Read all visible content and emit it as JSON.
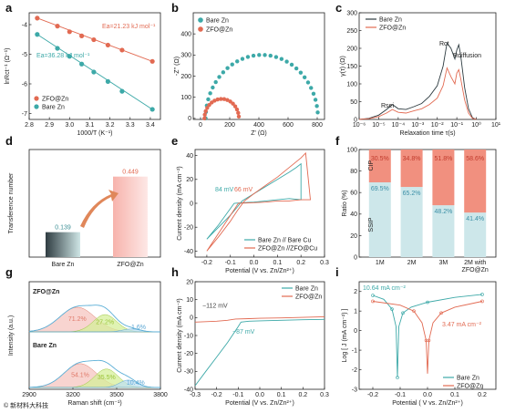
{
  "colors": {
    "zn": "#3da9a8",
    "zfo": "#e26a52",
    "dark": "#2d3b40",
    "zfo_light": "#f6b8b0",
    "red": "#d9534f"
  },
  "chart_data": [
    {
      "id": "a",
      "type": "scatter",
      "panel_label": "a",
      "xlabel": "1000/T (K⁻¹)",
      "ylabel": "lnRct⁻¹ (Ω⁻¹)",
      "xlim": [
        2.8,
        3.45
      ],
      "ylim": [
        -7.2,
        -3.6
      ],
      "xticks": [
        "2.8",
        "2.9",
        "3.0",
        "3.1",
        "3.2",
        "3.3",
        "3.4"
      ],
      "yticks": [
        "-4",
        "-5",
        "-6",
        "-7"
      ],
      "series": [
        {
          "name": "ZFO@Zn",
          "x": [
            2.84,
            2.94,
            3.0,
            3.06,
            3.12,
            3.19,
            3.26,
            3.41
          ],
          "y": [
            -3.78,
            -4.05,
            -4.24,
            -4.38,
            -4.51,
            -4.69,
            -4.86,
            -5.24
          ]
        },
        {
          "name": "Bare Zn",
          "x": [
            2.84,
            2.94,
            3.0,
            3.06,
            3.12,
            3.19,
            3.26,
            3.41
          ],
          "y": [
            -4.33,
            -4.8,
            -5.07,
            -5.33,
            -5.6,
            -5.92,
            -6.25,
            -6.86
          ]
        }
      ],
      "annotations": [
        "Ea=21.23 kJ mol⁻¹",
        "Ea=36.28 kJ mol⁻¹"
      ],
      "legend": "bottom-left"
    },
    {
      "id": "b",
      "type": "scatter",
      "panel_label": "b",
      "xlabel": "Z' (Ω)",
      "ylabel": "-Z'' (Ω)",
      "xlim": [
        -50,
        850
      ],
      "ylim": [
        -5,
        500
      ],
      "xticks": [
        "0",
        "200",
        "400",
        "600",
        "800"
      ],
      "yticks": [
        "0",
        "100",
        "200",
        "300",
        "400"
      ],
      "series": [
        {
          "name": "Bare Zn",
          "center": 420,
          "radius": 385
        },
        {
          "name": "ZFO@Zn",
          "center": 145,
          "radius": 118
        }
      ],
      "legend": "top-left"
    },
    {
      "id": "c",
      "type": "line",
      "panel_label": "c",
      "xlabel": "Relaxation time τ(s)",
      "ylabel": "γ(τ) (Ω)",
      "xlim_log": [
        -6,
        1
      ],
      "ylim": [
        0,
        300
      ],
      "xticks": [
        "10⁻⁶",
        "10⁻⁵",
        "10⁻⁴",
        "10⁻³",
        "10⁻²",
        "10⁻¹",
        "10⁰",
        "10¹"
      ],
      "yticks": [
        "0",
        "50",
        "100",
        "150",
        "200",
        "250",
        "300"
      ],
      "series": [
        {
          "name": "Bare Zn",
          "logx": [
            -6,
            -5.5,
            -5,
            -4.6,
            -4.3,
            -4,
            -3.6,
            -3.2,
            -2.8,
            -2.4,
            -2,
            -1.7,
            -1.5,
            -1.3,
            -1.1,
            -1,
            -0.9,
            -0.8,
            -0.6,
            -0.4,
            -0.2,
            0
          ],
          "y": [
            0,
            3,
            12,
            28,
            42,
            30,
            28,
            36,
            45,
            65,
            95,
            150,
            215,
            200,
            170,
            195,
            210,
            180,
            90,
            30,
            5,
            0
          ]
        },
        {
          "name": "ZFO@Zn",
          "logx": [
            -6,
            -5.5,
            -5,
            -4.6,
            -4.3,
            -4,
            -3.6,
            -3.2,
            -2.8,
            -2.4,
            -2,
            -1.7,
            -1.5,
            -1.3,
            -1.1,
            -1,
            -0.9,
            -0.8,
            -0.6,
            -0.4,
            -0.2,
            0
          ],
          "y": [
            0,
            2,
            8,
            18,
            28,
            20,
            18,
            24,
            30,
            42,
            60,
            95,
            145,
            120,
            100,
            130,
            140,
            115,
            55,
            18,
            3,
            0
          ]
        }
      ],
      "annotations": [
        "Rsei",
        "Rct",
        "Rdiffusion"
      ],
      "legend": "top-left"
    },
    {
      "id": "d",
      "type": "bar",
      "panel_label": "d",
      "ylabel": "Transference number",
      "categories": [
        "Bare Zn",
        "ZFO@Zn"
      ],
      "values": [
        0.139,
        0.449
      ],
      "labels": [
        "0.139",
        "0.449"
      ],
      "ylim": [
        0,
        0.6
      ]
    },
    {
      "id": "e",
      "type": "line",
      "panel_label": "e",
      "xlabel": "Potential (V vs. Zn/Zn²⁺)",
      "ylabel": "Current density (mA cm⁻²)",
      "xlim": [
        -0.25,
        0.3
      ],
      "ylim": [
        -45,
        45
      ],
      "xticks": [
        "-0.2",
        "-0.1",
        "0.0",
        "0.1",
        "0.2",
        "0.3"
      ],
      "yticks": [
        "-40",
        "-20",
        "0",
        "20",
        "40"
      ],
      "series": [
        {
          "name": "Bare Zn // Bare Cu",
          "x": [
            -0.2,
            -0.15,
            -0.1,
            -0.07,
            -0.05,
            0.0,
            0.05,
            0.1,
            0.15,
            0.18,
            0.2,
            0.2,
            0.15,
            0.1,
            0.05,
            0,
            -0.05,
            -0.084,
            -0.15,
            -0.2
          ],
          "y": [
            -30,
            -20,
            -10,
            -3,
            2,
            8,
            14,
            20,
            26,
            30,
            33,
            3,
            4,
            3,
            2,
            1,
            0.5,
            0,
            -18,
            -30
          ]
        },
        {
          "name": "ZFO@Zn //ZFO@Cu",
          "x": [
            -0.2,
            -0.15,
            -0.1,
            -0.07,
            -0.04,
            0.0,
            0.05,
            0.1,
            0.15,
            0.2,
            0.22,
            0.24,
            0.2,
            0.15,
            0.1,
            0.05,
            0,
            -0.066,
            -0.15,
            -0.2
          ],
          "y": [
            -40,
            -28,
            -15,
            -6,
            2,
            8,
            15,
            22,
            30,
            38,
            42,
            3,
            3,
            2,
            2,
            1,
            0.5,
            0,
            -25,
            -40
          ]
        }
      ],
      "annotations": [
        "84 mV",
        "66 mV"
      ],
      "legend": "bottom-right"
    },
    {
      "id": "f",
      "type": "bar",
      "panel_label": "f",
      "ylabel": "Ratio (%)",
      "categories": [
        "1M",
        "2M",
        "3M",
        "2M with ZFO@Zn"
      ],
      "series": [
        {
          "name": "SSIP",
          "values": [
            69.5,
            65.2,
            48.2,
            41.4
          ],
          "labels": [
            "69.5%",
            "65.2%",
            "48.2%",
            "41.4%"
          ]
        },
        {
          "name": "CIP",
          "values": [
            30.5,
            34.8,
            51.8,
            58.6
          ],
          "labels": [
            "30.5%",
            "34.8%",
            "51.8%",
            "58.6%"
          ]
        }
      ],
      "yticks": [
        "0",
        "20",
        "40",
        "60",
        "80",
        "100"
      ],
      "ylim": [
        0,
        100
      ]
    },
    {
      "id": "g",
      "type": "area",
      "panel_label": "g",
      "xlabel": "Raman shift (cm⁻¹)",
      "ylabel": "Intensity (a.u.)",
      "xlim": [
        2900,
        3800
      ],
      "xticks": [
        "2900",
        "3200",
        "3500",
        "3800"
      ],
      "series": [
        {
          "name": "ZFO@Zn",
          "peaks": [
            [
              3230,
              0.6,
              120,
              "71.2%"
            ],
            [
              3420,
              0.42,
              80,
              "27.2%"
            ],
            [
              3600,
              0.07,
              60,
              "1.6%"
            ]
          ]
        },
        {
          "name": "Bare Zn",
          "peaks": [
            [
              3250,
              0.58,
              110,
              "54.1%"
            ],
            [
              3430,
              0.45,
              80,
              "35.5%"
            ],
            [
              3580,
              0.18,
              60,
              "10.4%"
            ]
          ]
        }
      ]
    },
    {
      "id": "h",
      "type": "line",
      "panel_label": "h",
      "xlabel": "Potential (V vs. Zn/Zn²⁺)",
      "ylabel": "Current density (mA cm⁻²)",
      "xlim": [
        -0.3,
        0.3
      ],
      "ylim": [
        -40,
        20
      ],
      "xticks": [
        "-0.3",
        "-0.2",
        "-0.1",
        "0.0",
        "0.1",
        "0.2",
        "0.3"
      ],
      "yticks": [
        "20",
        "10",
        "0",
        "-10",
        "-20",
        "-30",
        "-40"
      ],
      "series": [
        {
          "name": "Bare Zn",
          "x": [
            -0.3,
            -0.25,
            -0.2,
            -0.15,
            -0.1,
            -0.087,
            -0.05,
            0,
            0.1,
            0.2,
            0.3
          ],
          "y": [
            -38,
            -30,
            -22,
            -14,
            -5,
            -2.5,
            -2,
            -1.8,
            -1.5,
            -1.2,
            -1
          ]
        },
        {
          "name": "ZFO@Zn",
          "x": [
            -0.3,
            -0.2,
            -0.15,
            -0.112,
            -0.05,
            0,
            0.1,
            0.2,
            0.3
          ],
          "y": [
            -2.5,
            -2,
            -1.5,
            -0.8,
            -0.6,
            -0.4,
            -0.2,
            0.1,
            0.5
          ]
        }
      ],
      "annotations": [
        "−112 mV",
        "−87 mV"
      ],
      "legend": "top-right"
    },
    {
      "id": "i",
      "type": "line",
      "panel_label": "i",
      "xlabel": "Potential ( V vs. Zn/Zn²⁺)",
      "ylabel": "Log [ J (mA cm⁻²) ]",
      "xlim": [
        -0.25,
        0.25
      ],
      "ylim": [
        -3,
        2.5
      ],
      "xticks": [
        "-0.2",
        "-0.1",
        "0.0",
        "0.1",
        "0.2"
      ],
      "yticks": [
        "2",
        "1",
        "0",
        "-1",
        "-2",
        "-3"
      ],
      "series": [
        {
          "name": "Bare Zn",
          "x": [
            -0.2,
            -0.16,
            -0.13,
            -0.115,
            -0.11,
            -0.105,
            -0.09,
            -0.06,
            0,
            0.1,
            0.2
          ],
          "y": [
            1.8,
            1.6,
            1.1,
            0.2,
            -2.4,
            0.2,
            0.9,
            1.2,
            1.45,
            1.7,
            1.85
          ]
        },
        {
          "name": "ZFO@Zn",
          "x": [
            -0.2,
            -0.1,
            -0.05,
            -0.02,
            -0.005,
            0,
            0.005,
            0.02,
            0.05,
            0.1,
            0.2
          ],
          "y": [
            1.5,
            1.3,
            1.0,
            0.4,
            -0.5,
            -2.2,
            -0.5,
            0.4,
            0.9,
            1.2,
            1.5
          ]
        }
      ],
      "annotations": [
        "10.64 mA cm⁻²",
        "3.47 mA cm⁻²"
      ],
      "legend": "bottom-right"
    }
  ],
  "watermark": "© 新材料大科技"
}
